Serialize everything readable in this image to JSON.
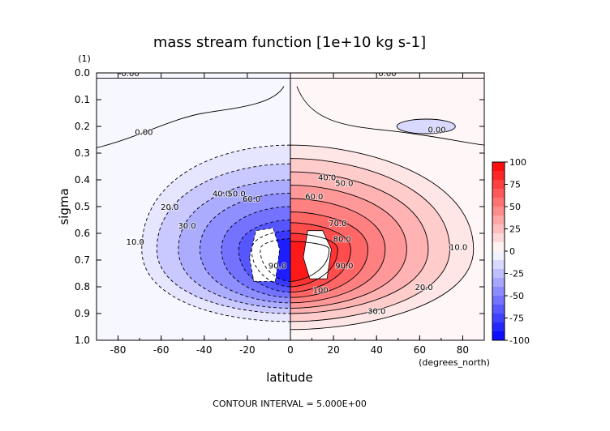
{
  "chart_data": {
    "type": "heatmap",
    "subtype": "filled-contour",
    "title": "mass stream function [1e+10 kg s-1]",
    "xlabel": "latitude",
    "x_unit": "(degrees_north)",
    "ylabel": "sigma",
    "y_unit": "(1)",
    "xlim": [
      -90,
      90
    ],
    "ylim": [
      1.0,
      0.0
    ],
    "y_inverted": true,
    "x_ticks": [
      -80,
      -60,
      -40,
      -20,
      0,
      20,
      40,
      60,
      80
    ],
    "x_tick_labels": [
      "-80",
      "-60",
      "-40",
      "-20",
      "0",
      "20",
      "40",
      "60",
      "80"
    ],
    "y_ticks": [
      0.0,
      0.1,
      0.2,
      0.3,
      0.4,
      0.5,
      0.6,
      0.7,
      0.8,
      0.9,
      1.0
    ],
    "y_tick_labels": [
      "0.0",
      "0.1",
      "0.2",
      "0.3",
      "0.4",
      "0.5",
      "0.6",
      "0.7",
      "0.8",
      "0.9",
      "1.0"
    ],
    "contour_interval_text": "CONTOUR INTERVAL = 5.000E+00",
    "colorbar": {
      "ticks": [
        100,
        75,
        50,
        25,
        0,
        -25,
        -50,
        -75,
        -100
      ],
      "tick_labels": [
        "100",
        "75",
        "50",
        "25",
        "0",
        "-25",
        "-50",
        "-75",
        "-100"
      ],
      "positive_color": "#ff0000",
      "negative_color": "#0000ff",
      "zero_color": "#ffffff"
    },
    "cells": [
      {
        "name": "northern-hemisphere-cell",
        "sign": 1,
        "center_lat": 10,
        "center_sigma": 0.65,
        "peak": 100
      },
      {
        "name": "southern-hemisphere-cell",
        "sign": -1,
        "center_lat": -12,
        "center_sigma": 0.68,
        "peak": -100
      }
    ],
    "contour_labels": [
      {
        "text": "-0.00",
        "lat": -75,
        "sigma": 0.0
      },
      {
        "text": "0.00",
        "lat": 45,
        "sigma": 0.0
      },
      {
        "text": "0.00",
        "lat": -68,
        "sigma": 0.22
      },
      {
        "text": "0.00",
        "lat": 68,
        "sigma": 0.21
      },
      {
        "text": "10.0",
        "lat": -72,
        "sigma": 0.63
      },
      {
        "text": "20.0",
        "lat": -56,
        "sigma": 0.5
      },
      {
        "text": "30.0",
        "lat": -48,
        "sigma": 0.57
      },
      {
        "text": "40.0",
        "lat": -32,
        "sigma": 0.45
      },
      {
        "text": "50.0",
        "lat": -25,
        "sigma": 0.45
      },
      {
        "text": "60.0",
        "lat": -18,
        "sigma": 0.47
      },
      {
        "text": "40.0",
        "lat": 17,
        "sigma": 0.39
      },
      {
        "text": "50.0",
        "lat": 25,
        "sigma": 0.41
      },
      {
        "text": "60.0",
        "lat": 11,
        "sigma": 0.46
      },
      {
        "text": "70.0",
        "lat": 22,
        "sigma": 0.56
      },
      {
        "text": "80.0",
        "lat": 24,
        "sigma": 0.62
      },
      {
        "text": "90.0",
        "lat": 25,
        "sigma": 0.72
      },
      {
        "text": "100",
        "lat": 14,
        "sigma": 0.81
      },
      {
        "text": "90.0",
        "lat": -6,
        "sigma": 0.72
      },
      {
        "text": "10.0",
        "lat": 78,
        "sigma": 0.65
      },
      {
        "text": "20.0",
        "lat": 62,
        "sigma": 0.8
      },
      {
        "text": "30.0",
        "lat": 40,
        "sigma": 0.89
      }
    ]
  }
}
